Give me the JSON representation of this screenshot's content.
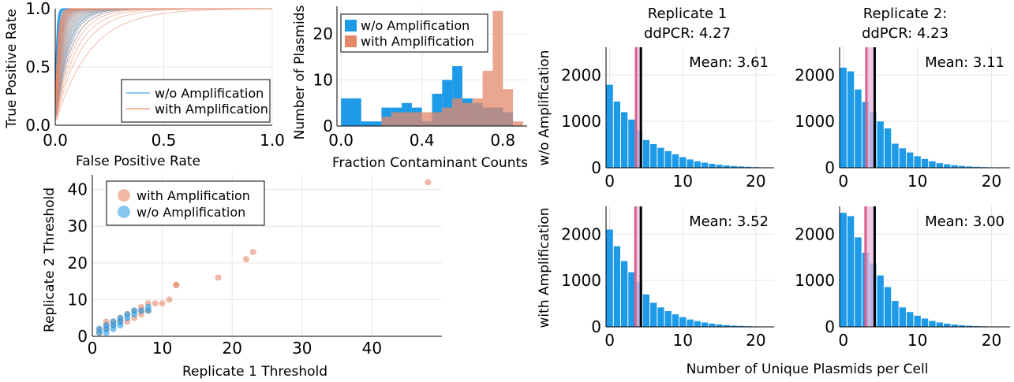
{
  "colors": {
    "blue": "#1e9be8",
    "blue_light": "#8ac8f2",
    "orange": "#e4886a",
    "orange_light": "#f2b9a4",
    "pink": "#d6608a",
    "pink_band": "#e9b8de",
    "black": "#000000",
    "grid": "#e6e6e6"
  },
  "chart_data": [
    {
      "id": "roc",
      "type": "line",
      "xlabel": "False Positive Rate",
      "ylabel": "True Positive Rate",
      "xlim": [
        0,
        1
      ],
      "ylim": [
        0,
        1
      ],
      "xticks": [
        "0.0",
        "0.5",
        "1.0"
      ],
      "yticks": [
        "0.0",
        "0.5",
        "1.0"
      ],
      "legend": {
        "placement": "bottom-right",
        "entries": [
          "w/o Amplification",
          "with Amplification"
        ]
      },
      "series": [
        {
          "name": "w/o Amplification",
          "curve_count": 30,
          "tpr_at_fpr_0_02": [
            0.98,
            0.975,
            0.97,
            0.965,
            0.96,
            0.955,
            0.95,
            0.94,
            0.93,
            0.92,
            0.91,
            0.88,
            0.85,
            0.82,
            0.78,
            0.74,
            0.7,
            0.66,
            0.62,
            0.58,
            0.54,
            0.5,
            0.46,
            0.42,
            0.38,
            0.35,
            0.32,
            0.3,
            0.28,
            0.25
          ]
        },
        {
          "name": "with Amplification",
          "curve_count": 30,
          "tpr_at_fpr_0_02": [
            0.86,
            0.84,
            0.82,
            0.8,
            0.78,
            0.76,
            0.74,
            0.72,
            0.7,
            0.68,
            0.66,
            0.64,
            0.62,
            0.6,
            0.58,
            0.55,
            0.52,
            0.49,
            0.46,
            0.43,
            0.4,
            0.37,
            0.34,
            0.31,
            0.28,
            0.25,
            0.22,
            0.19,
            0.16,
            0.12
          ]
        }
      ]
    },
    {
      "id": "contam-hist",
      "type": "bar",
      "xlabel": "Fraction Contaminant Counts",
      "ylabel": "Number of Plasmids",
      "xlim": [
        -0.02,
        0.92
      ],
      "ylim": [
        0,
        26
      ],
      "xticks": [
        "0.0",
        "0.4",
        "0.8"
      ],
      "yticks": [
        "0",
        "10",
        "20"
      ],
      "bin_width": 0.05,
      "bin_starts": [
        0.0,
        0.05,
        0.1,
        0.15,
        0.2,
        0.25,
        0.3,
        0.35,
        0.4,
        0.45,
        0.5,
        0.55,
        0.6,
        0.65,
        0.7,
        0.75,
        0.8,
        0.85
      ],
      "legend": {
        "placement": "top-right",
        "entries": [
          "w/o Amplification",
          "with Amplification"
        ]
      },
      "series": [
        {
          "name": "w/o Amplification",
          "values": [
            6,
            6,
            1,
            1,
            4,
            4,
            5,
            4,
            1,
            7,
            10,
            13,
            6,
            5,
            4,
            4,
            3,
            0
          ]
        },
        {
          "name": "with Amplification",
          "values": [
            0,
            0,
            0,
            0,
            2,
            3,
            3,
            3,
            3,
            3,
            4,
            6,
            5,
            6,
            12,
            25,
            8,
            1
          ]
        }
      ]
    },
    {
      "id": "threshold-scatter",
      "type": "scatter",
      "xlabel": "Replicate 1 Threshold",
      "ylabel": "Replicate 2 Threshold",
      "xlim": [
        0,
        50
      ],
      "ylim": [
        0,
        44
      ],
      "xticks": [
        "0",
        "10",
        "20",
        "30",
        "40"
      ],
      "yticks": [
        "0",
        "10",
        "20",
        "30",
        "40"
      ],
      "legend": {
        "placement": "top-left",
        "entries": [
          "with Amplification",
          "w/o Amplification"
        ]
      },
      "series": [
        {
          "name": "with Amplification",
          "points": [
            [
              1,
              1
            ],
            [
              1,
              2
            ],
            [
              2,
              2
            ],
            [
              2,
              3
            ],
            [
              2,
              4
            ],
            [
              3,
              3
            ],
            [
              3,
              4
            ],
            [
              4,
              4
            ],
            [
              4,
              5
            ],
            [
              5,
              4
            ],
            [
              5,
              6
            ],
            [
              6,
              5
            ],
            [
              6,
              7
            ],
            [
              7,
              6
            ],
            [
              7,
              7
            ],
            [
              7,
              8
            ],
            [
              8,
              7
            ],
            [
              8,
              9
            ],
            [
              9,
              9
            ],
            [
              10,
              9
            ],
            [
              11,
              10
            ],
            [
              12,
              14
            ],
            [
              12,
              14
            ],
            [
              18,
              16
            ],
            [
              22,
              21
            ],
            [
              23,
              23
            ],
            [
              48,
              42
            ]
          ]
        },
        {
          "name": "w/o Amplification",
          "points": [
            [
              1,
              1
            ],
            [
              1,
              2
            ],
            [
              2,
              1
            ],
            [
              2,
              2
            ],
            [
              2,
              3
            ],
            [
              3,
              2
            ],
            [
              3,
              3
            ],
            [
              3,
              4
            ],
            [
              4,
              3
            ],
            [
              4,
              4
            ],
            [
              4,
              5
            ],
            [
              5,
              5
            ],
            [
              5,
              6
            ],
            [
              6,
              6
            ],
            [
              6,
              7
            ],
            [
              7,
              7
            ],
            [
              8,
              7
            ],
            [
              8,
              8
            ]
          ]
        }
      ]
    },
    {
      "id": "plasmid-grid",
      "type": "bar",
      "xlabel": "Number of Unique Plasmids per Cell",
      "xticks": [
        "0",
        "10",
        "20"
      ],
      "yticks": [
        "0",
        "1000",
        "2000"
      ],
      "xlim": [
        -0.5,
        22.5
      ],
      "ylim": [
        0,
        2600
      ],
      "columns": [
        "Replicate 1\nddPCR: 4.27",
        "Replicate 2:\nddPCR: 4.23"
      ],
      "rows": [
        "w/o Amplification",
        "with Amplification"
      ],
      "panels": [
        {
          "row": 0,
          "col": 0,
          "mean_label": "Mean: 3.61",
          "mean": 3.61,
          "ddpcr": 4.27,
          "values": [
            1790,
            1430,
            1200,
            1040,
            800,
            600,
            510,
            430,
            360,
            290,
            230,
            180,
            140,
            110,
            85,
            65,
            50,
            38,
            28,
            20,
            14,
            10,
            7
          ]
        },
        {
          "row": 0,
          "col": 1,
          "mean_label": "Mean: 3.11",
          "mean": 3.11,
          "ddpcr": 4.23,
          "values": [
            2160,
            2080,
            1690,
            1420,
            1200,
            1000,
            850,
            520,
            420,
            330,
            250,
            190,
            140,
            100,
            75,
            55,
            40,
            28,
            20,
            14,
            10,
            7,
            5
          ]
        },
        {
          "row": 1,
          "col": 0,
          "mean_label": "Mean: 3.52",
          "mean": 3.52,
          "ddpcr": 4.27,
          "values": [
            2100,
            1740,
            1420,
            1180,
            970,
            700,
            520,
            420,
            340,
            270,
            210,
            160,
            125,
            95,
            70,
            52,
            38,
            28,
            20,
            14,
            10,
            7,
            5
          ]
        },
        {
          "row": 1,
          "col": 1,
          "mean_label": "Mean: 3.00",
          "mean": 3.0,
          "ddpcr": 4.23,
          "values": [
            2460,
            2390,
            1930,
            1600,
            1370,
            1110,
            860,
            560,
            420,
            320,
            240,
            180,
            130,
            95,
            70,
            50,
            36,
            26,
            18,
            13,
            9,
            6,
            4
          ]
        }
      ]
    }
  ]
}
